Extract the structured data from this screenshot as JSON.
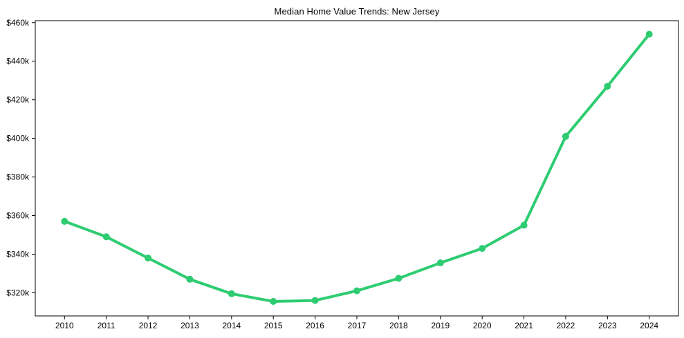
{
  "window": {
    "background_color": "#ffffff"
  },
  "chart_data": {
    "type": "line",
    "title": "Median Home Value Trends: New Jersey",
    "xlabel": "",
    "ylabel": "",
    "categories": [
      2010,
      2011,
      2012,
      2013,
      2014,
      2015,
      2016,
      2017,
      2018,
      2019,
      2020,
      2021,
      2022,
      2023,
      2024
    ],
    "values": [
      357000,
      349000,
      338000,
      327000,
      319500,
      315500,
      316000,
      321000,
      327500,
      335500,
      343000,
      355000,
      401000,
      427000,
      454000
    ],
    "x_tick_labels": [
      "2010",
      "2011",
      "2012",
      "2013",
      "2014",
      "2015",
      "2016",
      "2017",
      "2018",
      "2019",
      "2020",
      "2021",
      "2022",
      "2023",
      "2024"
    ],
    "y_ticks": {
      "values": [
        320000,
        340000,
        360000,
        380000,
        400000,
        420000,
        440000,
        460000
      ],
      "labels": [
        "$320k",
        "$340k",
        "$360k",
        "$380k",
        "$400k",
        "$420k",
        "$440k",
        "$460k"
      ]
    },
    "xlim": [
      2009.3,
      2024.7
    ],
    "ylim": [
      308000,
      461000
    ],
    "grid": false,
    "legend": false,
    "line_color": "#2ecc71",
    "marker": "circle",
    "marker_size": 5,
    "line_width": 4,
    "axis_color": "#000000",
    "text_color": "#000000"
  }
}
